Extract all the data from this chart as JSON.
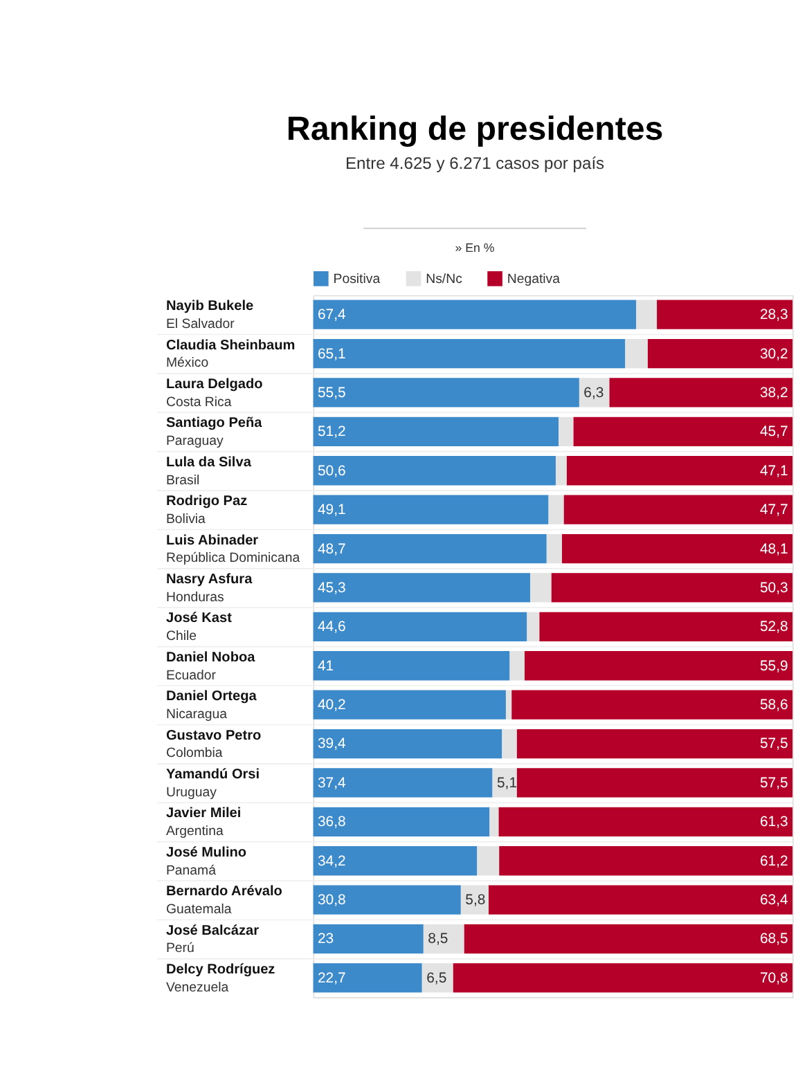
{
  "chart_data": {
    "type": "bar",
    "orientation": "horizontal",
    "stacked": true,
    "title": "Ranking de presidentes",
    "subtitle": "Entre 4.625 y 6.271 casos por país",
    "annotations": [
      "» En %"
    ],
    "legend": "top",
    "grid": false,
    "tick_labels": false,
    "categories": [
      "Nayib Bukele\nEl Salvador",
      "Claudia Sheinbaum\nMéxico",
      "Laura Delgado\nCosta Rica",
      "Santiago Peña\nParaguay",
      "Lula da Silva\nBrasil",
      "Rodrigo Paz\nBolivia",
      "Luis Abinader\nRepública Dominicana",
      "Nasry Asfura\nHonduras",
      "José Kast\nChile",
      "Daniel Noboa\nEcuador",
      "Daniel Ortega\nNicaragua",
      "Gustavo Petro\nColombia",
      "Yamandú Orsi\nUruguay",
      "Javier Milei\nArgentina",
      "José Mulino\nPanamá",
      "Bernardo Arévalo\nGuatemala",
      "José Balcázar\nPerú",
      "Delcy Rodríguez\nVenezuela"
    ],
    "series": [
      {
        "name": "Positiva",
        "color": "#3d8acb",
        "values": [
          67.4,
          65.1,
          55.5,
          51.2,
          50.6,
          49.1,
          48.7,
          45.3,
          44.6,
          41,
          40.2,
          39.4,
          37.4,
          36.8,
          34.2,
          30.8,
          23,
          22.7
        ],
        "value_labels": [
          "67,4",
          "65,1",
          "55,5",
          "51,2",
          "50,6",
          "49,1",
          "48,7",
          "45,3",
          "44,6",
          "41",
          "40,2",
          "39,4",
          "37,4",
          "36,8",
          "34,2",
          "30,8",
          "23",
          "22,7"
        ]
      },
      {
        "name": "Ns/Nc",
        "color": "#e3e3e3",
        "values": [
          4.3,
          4.7,
          6.3,
          3.1,
          2.3,
          3.2,
          3.2,
          4.4,
          2.6,
          3.1,
          1.2,
          3.1,
          5.1,
          1.9,
          4.6,
          5.8,
          8.5,
          6.5
        ],
        "value_labels": [
          null,
          null,
          "6,3",
          null,
          null,
          null,
          null,
          null,
          null,
          null,
          null,
          null,
          "5,1",
          null,
          null,
          "5,8",
          "8,5",
          "6,5"
        ]
      },
      {
        "name": "Negativa",
        "color": "#b5002a",
        "values": [
          28.3,
          30.2,
          38.2,
          45.7,
          47.1,
          47.7,
          48.1,
          50.3,
          52.8,
          55.9,
          58.6,
          57.5,
          57.5,
          61.3,
          61.2,
          63.4,
          68.5,
          70.8
        ],
        "value_labels": [
          "28,3",
          "30,2",
          "38,2",
          "45,7",
          "47,1",
          "47,7",
          "48,1",
          "50,3",
          "52,8",
          "55,9",
          "58,6",
          "57,5",
          "57,5",
          "61,3",
          "61,2",
          "63,4",
          "68,5",
          "70,8"
        ]
      }
    ]
  }
}
